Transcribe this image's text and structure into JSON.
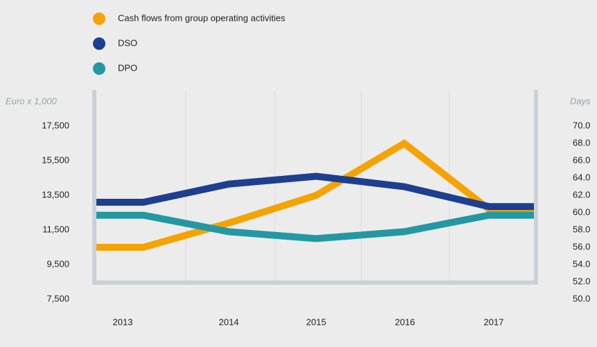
{
  "chart_data": {
    "type": "line",
    "y_label": "Euro x 1,000",
    "y2_label": "Days",
    "categories": [
      "2013",
      "2014",
      "2015",
      "2016",
      "2017"
    ],
    "series": [
      {
        "name": "Cash flows from group operating activities",
        "color": "#f5a300",
        "values": [
          10500,
          11900,
          13500,
          16500,
          12700
        ]
      },
      {
        "name": "DSO",
        "color": "#1e3f8f",
        "axis": "y2",
        "values": [
          61.2,
          63.3,
          64.2,
          63.0,
          60.7
        ]
      },
      {
        "name": "DPO",
        "color": "#2398a3",
        "axis": "y2",
        "values": [
          59.7,
          57.8,
          57.0,
          57.8,
          59.7
        ]
      }
    ],
    "ylim": [
      7500,
      17500
    ],
    "yticks": [
      {
        "value": 17500,
        "label": "17,500"
      },
      {
        "value": 15500,
        "label": "15,500"
      },
      {
        "value": 13500,
        "label": "13,500"
      },
      {
        "value": 11500,
        "label": "11,500"
      },
      {
        "value": 9500,
        "label": "9,500"
      },
      {
        "value": 7500,
        "label": "7,500"
      }
    ],
    "y2lim": [
      50,
      70
    ],
    "y2ticks": [
      {
        "value": 70,
        "label": "70.0"
      },
      {
        "value": 68,
        "label": "68.0"
      },
      {
        "value": 66,
        "label": "66.0"
      },
      {
        "value": 64,
        "label": "64.0"
      },
      {
        "value": 62,
        "label": "62.0"
      },
      {
        "value": 60,
        "label": "60.0"
      },
      {
        "value": 58,
        "label": "58.0"
      },
      {
        "value": 56,
        "label": "56.0"
      },
      {
        "value": 54,
        "label": "54.0"
      },
      {
        "value": 52,
        "label": "52.0"
      },
      {
        "value": 50,
        "label": "50.0"
      }
    ],
    "grid": true,
    "legend": "top-left"
  }
}
